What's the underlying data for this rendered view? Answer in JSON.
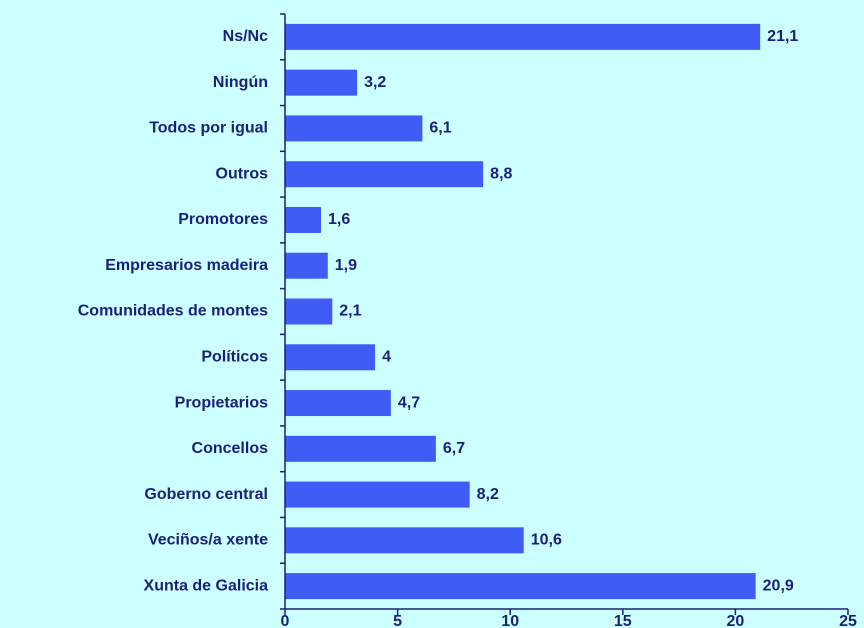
{
  "chart_data": {
    "type": "bar",
    "orientation": "horizontal",
    "categories": [
      "Ns/Nc",
      "Ningún",
      "Todos por igual",
      "Outros",
      "Promotores",
      "Empresarios madeira",
      "Comunidades de montes",
      "Políticos",
      "Propietarios",
      "Concellos",
      "Goberno central",
      "Veciños/a xente",
      "Xunta de Galicia"
    ],
    "values": [
      21.1,
      3.2,
      6.1,
      8.8,
      1.6,
      1.9,
      2.1,
      4,
      4.7,
      6.7,
      8.2,
      10.6,
      20.9
    ],
    "value_labels": [
      "21,1",
      "3,2",
      "6,1",
      "8,8",
      "1,6",
      "1,9",
      "2,1",
      "4",
      "4,7",
      "6,7",
      "8,2",
      "10,6",
      "20,9"
    ],
    "color": "#3f5cf5",
    "xlim": [
      0,
      25
    ],
    "xticks": [
      0,
      5,
      10,
      15,
      20,
      25
    ]
  }
}
